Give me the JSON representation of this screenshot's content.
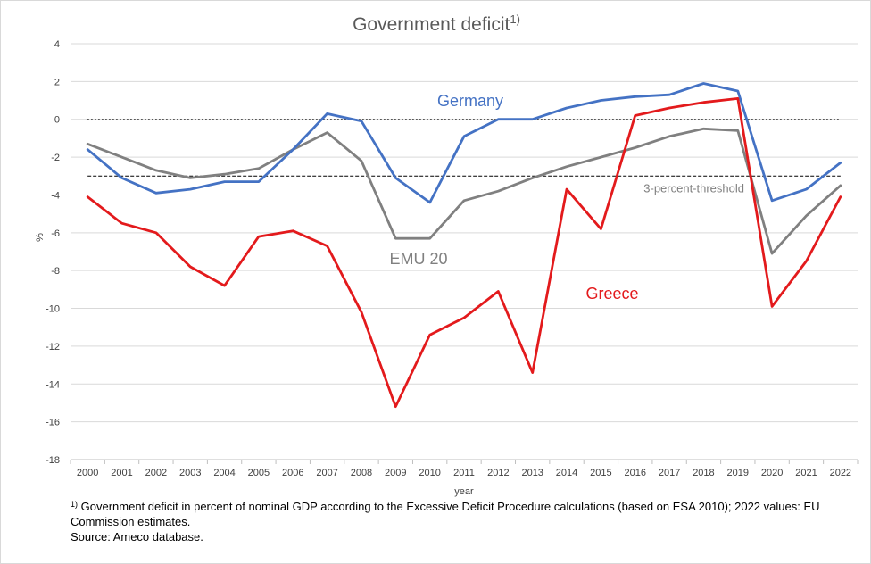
{
  "chart_data": {
    "type": "line",
    "title": "Government deficit",
    "title_superscript": "1)",
    "xlabel": "year",
    "ylabel": "%",
    "ylim": [
      -18,
      4
    ],
    "yticks": [
      4,
      2,
      0,
      -2,
      -4,
      -6,
      -8,
      -10,
      -12,
      -14,
      -16,
      -18
    ],
    "grid": true,
    "categories": [
      "2000",
      "2001",
      "2002",
      "2003",
      "2004",
      "2005",
      "2006",
      "2007",
      "2008",
      "2009",
      "2010",
      "2011",
      "2012",
      "2013",
      "2014",
      "2015",
      "2016",
      "2017",
      "2018",
      "2019",
      "2020",
      "2021",
      "2022"
    ],
    "series": [
      {
        "name": "Germany",
        "color": "#4472c4",
        "values": [
          -1.6,
          -3.1,
          -3.9,
          -3.7,
          -3.3,
          -3.3,
          -1.6,
          0.3,
          -0.1,
          -3.1,
          -4.4,
          -0.9,
          0.0,
          0.0,
          0.6,
          1.0,
          1.2,
          1.3,
          1.9,
          1.5,
          -4.3,
          -3.7,
          -2.3
        ]
      },
      {
        "name": "EMU 20",
        "color": "#808080",
        "values": [
          -1.3,
          -2.0,
          -2.7,
          -3.1,
          -2.9,
          -2.6,
          -1.6,
          -0.7,
          -2.2,
          -6.3,
          -6.3,
          -4.3,
          -3.8,
          -3.1,
          -2.5,
          -2.0,
          -1.5,
          -0.9,
          -0.5,
          -0.6,
          -7.1,
          -5.1,
          -3.5
        ]
      },
      {
        "name": "Greece",
        "color": "#e31a1c",
        "values": [
          -4.1,
          -5.5,
          -6.0,
          -7.8,
          -8.8,
          -6.2,
          -5.9,
          -6.7,
          -10.2,
          -15.2,
          -11.4,
          -10.5,
          -9.1,
          -13.4,
          -3.7,
          -5.8,
          0.2,
          0.6,
          0.9,
          1.1,
          -9.9,
          -7.5,
          -4.1
        ]
      }
    ],
    "reference_lines": [
      {
        "y": 0,
        "style": "dotted",
        "label": ""
      },
      {
        "y": -3,
        "style": "dashed",
        "label": "3-percent-threshold"
      }
    ]
  },
  "footnote": {
    "marker": "1)",
    "line1": "Government deficit in percent of nominal GDP according to the Excessive Deficit Procedure calculations (based on ESA 2010);  2022  values: EU Commission estimates.",
    "source": "Source: Ameco database."
  }
}
